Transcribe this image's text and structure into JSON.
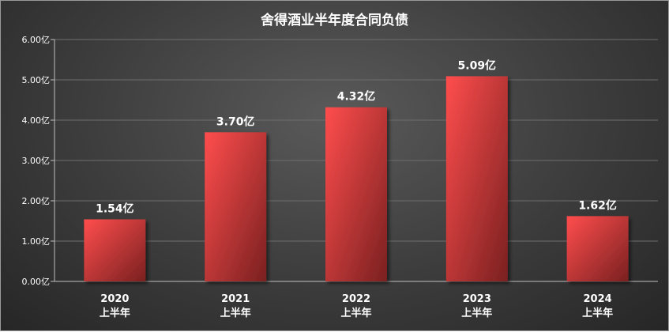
{
  "chart_data": {
    "type": "bar",
    "title": "舍得酒业半年度合同负债",
    "categories": [
      [
        "2020",
        "上半年"
      ],
      [
        "2021",
        "上半年"
      ],
      [
        "2022",
        "上半年"
      ],
      [
        "2023",
        "上半年"
      ],
      [
        "2024",
        "上半年"
      ]
    ],
    "values": [
      1.54,
      3.7,
      4.32,
      5.09,
      1.62
    ],
    "data_labels": [
      "1.54亿",
      "3.70亿",
      "4.32亿",
      "5.09亿",
      "1.62亿"
    ],
    "y_ticks": [
      "0.00亿",
      "1.00亿",
      "2.00亿",
      "3.00亿",
      "4.00亿",
      "5.00亿",
      "6.00亿"
    ],
    "ylim": [
      0,
      6
    ],
    "grid": true,
    "legend": "none",
    "colors": {
      "bar_top": "#ff4d4d",
      "bar_bottom": "#7a2020",
      "grid": "#6e6e6e",
      "axis": "#bfbfbf"
    }
  }
}
